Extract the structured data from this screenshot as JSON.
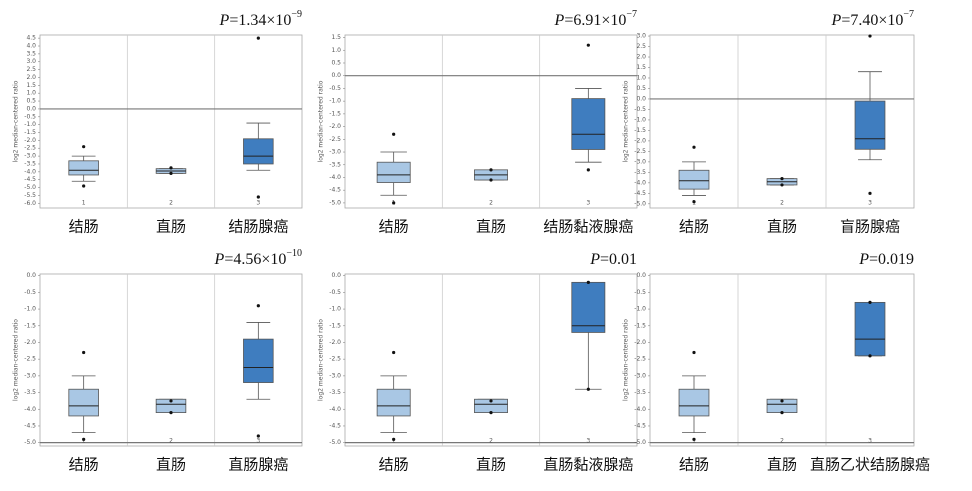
{
  "chart_data": [
    {
      "type": "box",
      "p_symbol": "P",
      "p_text": "=1.34×10",
      "p_exp": "−9",
      "ylabel": "log2 median-centered ratio",
      "categories": [
        "结肠",
        "直肠",
        "结肠腺癌"
      ],
      "category_ids": [
        "1",
        "2",
        "3"
      ],
      "colors": [
        "#a9c7e4",
        "#a9c7e4",
        "#3f7dbf"
      ],
      "ylim": [
        -6.3,
        4.7
      ],
      "hline": 0,
      "yticks": [
        4.5,
        {
          "value": 4,
          "label": "4.0"
        },
        3.5,
        {
          "value": 3,
          "label": "3.0"
        },
        2.5,
        {
          "value": 2,
          "label": "2.0"
        },
        1.5,
        {
          "value": 1,
          "label": "1.0"
        },
        0.5,
        {
          "value": 0,
          "label": "0.0"
        },
        -0.5,
        {
          "value": -1,
          "label": "-1.0"
        },
        -1.5,
        {
          "value": -2,
          "label": "-2.0"
        },
        -2.5,
        {
          "value": -3,
          "label": "-3.0"
        },
        -3.5,
        {
          "value": -4,
          "label": "-4.0"
        },
        -4.5,
        {
          "value": -5,
          "label": "-5.0"
        },
        -5.5,
        {
          "value": -6,
          "label": "-6.0"
        }
      ],
      "boxes": [
        {
          "low": -4.6,
          "q1": -4.2,
          "median": -3.9,
          "q3": -3.3,
          "high": -3.0,
          "outliers": [
            -2.4,
            -4.9
          ]
        },
        {
          "low": -4.1,
          "q1": -4.1,
          "median": -3.95,
          "q3": -3.8,
          "high": -3.8,
          "outliers": [
            -3.75,
            -4.1
          ]
        },
        {
          "low": -3.9,
          "q1": -3.5,
          "median": -3.0,
          "q3": -1.9,
          "high": -0.9,
          "outliers": [
            4.5,
            -5.6
          ]
        }
      ]
    },
    {
      "type": "box",
      "p_symbol": "P",
      "p_text": "=6.91×10",
      "p_exp": "−7",
      "ylabel": "log2 median-centered ratio",
      "categories": [
        "结肠",
        "直肠",
        "结肠黏液腺癌"
      ],
      "category_ids": [
        "1",
        "2",
        "3"
      ],
      "colors": [
        "#a9c7e4",
        "#a9c7e4",
        "#3f7dbf"
      ],
      "ylim": [
        -5.2,
        1.6
      ],
      "hline": 0,
      "yticks": [
        1.5,
        {
          "value": 1,
          "label": "1.0"
        },
        0.5,
        {
          "value": 0,
          "label": "0.0"
        },
        -0.5,
        {
          "value": -1,
          "label": "-1.0"
        },
        -1.5,
        {
          "value": -2,
          "label": "-2.0"
        },
        -2.5,
        {
          "value": -3,
          "label": "-3.0"
        },
        -3.5,
        {
          "value": -4,
          "label": "-4.0"
        },
        -4.5,
        {
          "value": -5,
          "label": "-5.0"
        }
      ],
      "boxes": [
        {
          "low": -4.7,
          "q1": -4.2,
          "median": -3.9,
          "q3": -3.4,
          "high": -3.0,
          "outliers": [
            -2.3,
            -5.0
          ]
        },
        {
          "low": -4.1,
          "q1": -4.1,
          "median": -3.9,
          "q3": -3.7,
          "high": -3.7,
          "outliers": [
            -3.7,
            -4.1
          ]
        },
        {
          "low": -3.4,
          "q1": -2.9,
          "median": -2.3,
          "q3": -0.9,
          "high": -0.5,
          "outliers": [
            1.2,
            -3.7
          ]
        }
      ]
    },
    {
      "type": "box",
      "p_symbol": "P",
      "p_text": "=7.40×10",
      "p_exp": "−7",
      "ylabel": "log2 median-centered ratio",
      "categories": [
        "结肠",
        "直肠",
        "盲肠腺癌"
      ],
      "category_ids": [
        "1",
        "2",
        "3"
      ],
      "colors": [
        "#a9c7e4",
        "#a9c7e4",
        "#3f7dbf"
      ],
      "ylim": [
        -5.2,
        3.05
      ],
      "hline": 0,
      "yticks": [
        {
          "value": 3,
          "label": "3.0"
        },
        2.5,
        {
          "value": 2,
          "label": "2.0"
        },
        1.5,
        {
          "value": 1,
          "label": "1.0"
        },
        0.5,
        {
          "value": 0,
          "label": "0.0"
        },
        -0.5,
        {
          "value": -1,
          "label": "-1.0"
        },
        -1.5,
        {
          "value": -2,
          "label": "-2.0"
        },
        -2.5,
        {
          "value": -3,
          "label": "-3.0"
        },
        -3.5,
        {
          "value": -4,
          "label": "-4.0"
        },
        -4.5,
        {
          "value": -5,
          "label": "-5.0"
        }
      ],
      "boxes": [
        {
          "low": -4.6,
          "q1": -4.3,
          "median": -3.9,
          "q3": -3.4,
          "high": -3.0,
          "outliers": [
            -2.3,
            -4.9
          ]
        },
        {
          "low": -4.1,
          "q1": -4.1,
          "median": -3.95,
          "q3": -3.8,
          "high": -3.8,
          "outliers": [
            -3.8,
            -4.1
          ]
        },
        {
          "low": -2.9,
          "q1": -2.4,
          "median": -1.9,
          "q3": -0.1,
          "high": 1.3,
          "outliers": [
            3.0,
            -4.5
          ]
        }
      ]
    },
    {
      "type": "box",
      "p_symbol": "P",
      "p_text": "=4.56×10",
      "p_exp": "−10",
      "ylabel": "log2 median-centered ratio",
      "categories": [
        "结肠",
        "直肠",
        "直肠腺癌"
      ],
      "category_ids": [
        "1",
        "2",
        "3"
      ],
      "colors": [
        "#a9c7e4",
        "#a9c7e4",
        "#3f7dbf"
      ],
      "ylim": [
        -5.1,
        0.05
      ],
      "hline": -5,
      "yticks": [
        {
          "value": 0,
          "label": "0.0"
        },
        -0.5,
        {
          "value": -1,
          "label": "-1.0"
        },
        -1.5,
        {
          "value": -2,
          "label": "-2.0"
        },
        -2.5,
        {
          "value": -3,
          "label": "-3.0"
        },
        -3.5,
        {
          "value": -4,
          "label": "-4.0"
        },
        -4.5,
        {
          "value": -5,
          "label": "-5.0"
        }
      ],
      "boxes": [
        {
          "low": -4.7,
          "q1": -4.2,
          "median": -3.9,
          "q3": -3.4,
          "high": -3.0,
          "outliers": [
            -2.3,
            -4.9
          ]
        },
        {
          "low": -4.1,
          "q1": -4.1,
          "median": -3.85,
          "q3": -3.7,
          "high": -3.7,
          "outliers": [
            -3.75,
            -4.1
          ]
        },
        {
          "low": -3.7,
          "q1": -3.2,
          "median": -2.75,
          "q3": -1.9,
          "high": -1.4,
          "outliers": [
            -0.9,
            -4.8
          ]
        }
      ]
    },
    {
      "type": "box",
      "p_symbol": "P",
      "p_text": "=0.01",
      "ylabel": "log2 median-centered ratio",
      "categories": [
        "结肠",
        "直肠",
        "直肠黏液腺癌"
      ],
      "category_ids": [
        "1",
        "2",
        "3"
      ],
      "colors": [
        "#a9c7e4",
        "#a9c7e4",
        "#3f7dbf"
      ],
      "ylim": [
        -5.1,
        0.05
      ],
      "hline": -5,
      "yticks": [
        {
          "value": 0,
          "label": "0.0"
        },
        -0.5,
        {
          "value": -1,
          "label": "-1.0"
        },
        -1.5,
        {
          "value": -2,
          "label": "-2.0"
        },
        -2.5,
        {
          "value": -3,
          "label": "-3.0"
        },
        -3.5,
        {
          "value": -4,
          "label": "-4.0"
        },
        -4.5,
        {
          "value": -5,
          "label": "-5.0"
        }
      ],
      "boxes": [
        {
          "low": -4.7,
          "q1": -4.2,
          "median": -3.9,
          "q3": -3.4,
          "high": -3.0,
          "outliers": [
            -2.3,
            -4.9
          ]
        },
        {
          "low": -4.1,
          "q1": -4.1,
          "median": -3.85,
          "q3": -3.7,
          "high": -3.7,
          "outliers": [
            -3.75,
            -4.1
          ]
        },
        {
          "low": -3.4,
          "q1": -1.7,
          "median": -1.5,
          "q3": -0.2,
          "high": -0.2,
          "outliers": [
            -0.2,
            -3.4
          ]
        }
      ]
    },
    {
      "type": "box",
      "p_symbol": "P",
      "p_text": "=0.019",
      "ylabel": "log2 median-centered ratio",
      "categories": [
        "结肠",
        "直肠",
        "直肠乙状结肠腺癌"
      ],
      "category_ids": [
        "1",
        "2",
        "3"
      ],
      "colors": [
        "#a9c7e4",
        "#a9c7e4",
        "#3f7dbf"
      ],
      "ylim": [
        -5.1,
        0.05
      ],
      "hline": -5,
      "yticks": [
        {
          "value": 0,
          "label": "0.0"
        },
        -0.5,
        {
          "value": -1,
          "label": "-1.0"
        },
        -1.5,
        {
          "value": -2,
          "label": "-2.0"
        },
        -2.5,
        {
          "value": -3,
          "label": "-3.0"
        },
        -3.5,
        {
          "value": -4,
          "label": "-4.0"
        },
        -4.5,
        {
          "value": -5,
          "label": "-5.0"
        }
      ],
      "boxes": [
        {
          "low": -4.7,
          "q1": -4.2,
          "median": -3.9,
          "q3": -3.4,
          "high": -3.0,
          "outliers": [
            -2.3,
            -4.9
          ]
        },
        {
          "low": -4.1,
          "q1": -4.1,
          "median": -3.85,
          "q3": -3.7,
          "high": -3.7,
          "outliers": [
            -3.75,
            -4.1
          ]
        },
        {
          "low": -2.4,
          "q1": -2.4,
          "median": -1.9,
          "q3": -0.8,
          "high": -0.8,
          "outliers": [
            -0.8,
            -2.4
          ]
        }
      ]
    }
  ]
}
